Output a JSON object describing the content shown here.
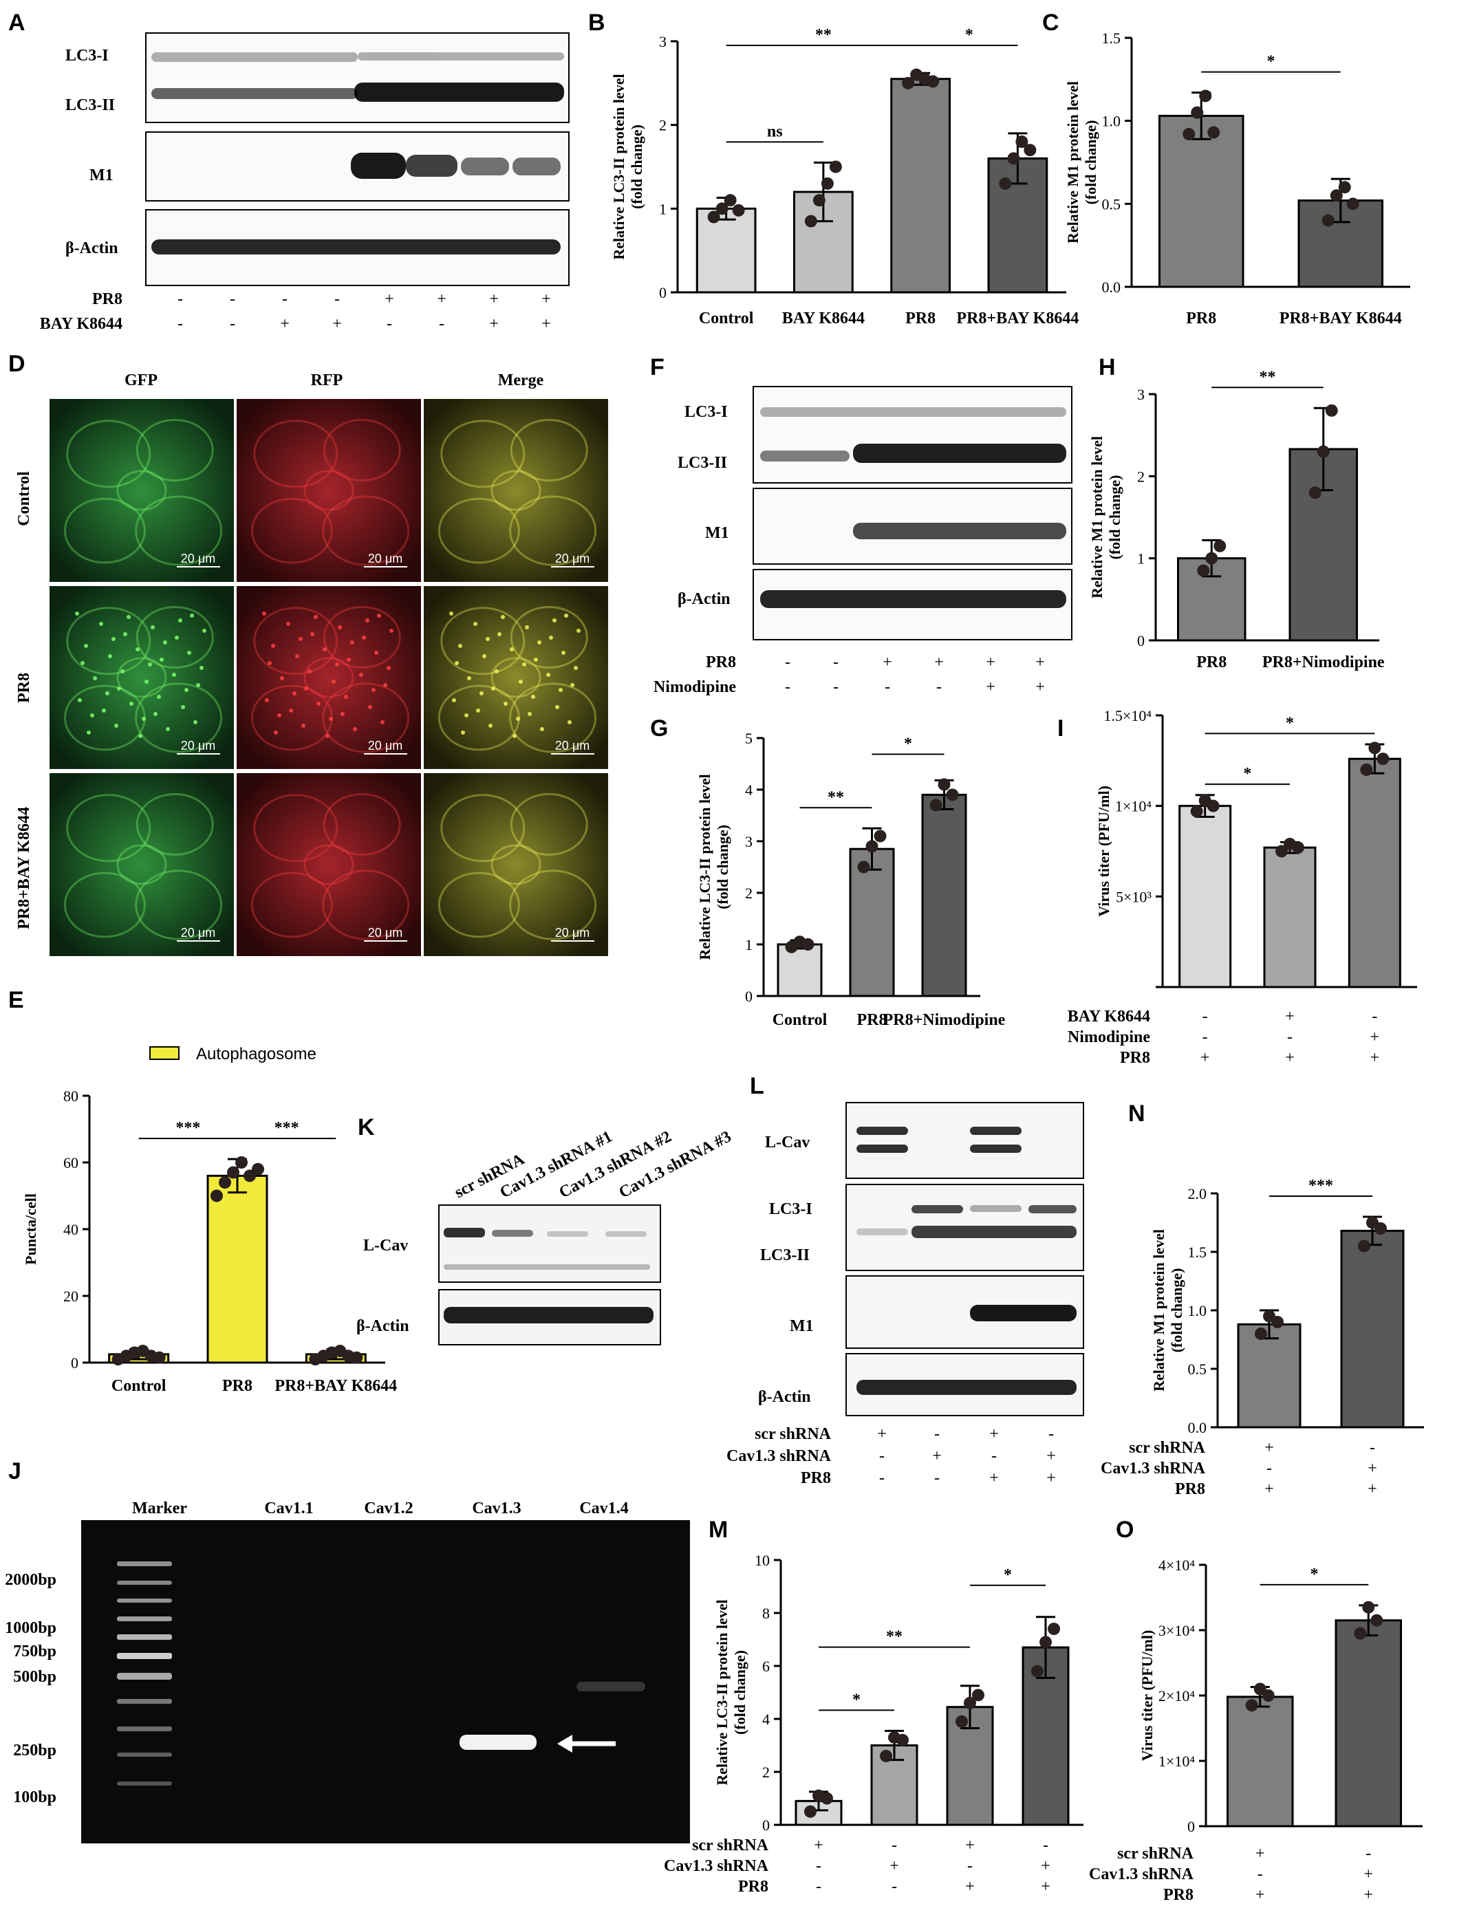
{
  "panel_letters": [
    "A",
    "B",
    "C",
    "D",
    "E",
    "F",
    "G",
    "H",
    "I",
    "J",
    "K",
    "L",
    "M",
    "N",
    "O"
  ],
  "blot_A": {
    "bands": [
      "LC3-I",
      "LC3-II",
      "M1",
      "β-Actin"
    ],
    "rows": [
      {
        "label": "PR8",
        "signs": [
          "-",
          "-",
          "-",
          "-",
          "+",
          "+",
          "+",
          "+"
        ]
      },
      {
        "label": "BAY K8644",
        "signs": [
          "-",
          "-",
          "+",
          "+",
          "-",
          "-",
          "+",
          "+"
        ]
      }
    ]
  },
  "blot_F": {
    "bands": [
      "LC3-I",
      "LC3-II",
      "M1",
      "β-Actin"
    ],
    "rows": [
      {
        "label": "PR8",
        "signs": [
          "-",
          "-",
          "+",
          "+",
          "+",
          "+"
        ]
      },
      {
        "label": "Nimodipine",
        "signs": [
          "-",
          "-",
          "-",
          "-",
          "+",
          "+"
        ]
      }
    ]
  },
  "blot_K": {
    "lanes": [
      "scr shRNA",
      "Cav1.3 shRNA #1",
      "Cav1.3 shRNA #2",
      "Cav1.3 shRNA #3"
    ],
    "bands": [
      "L-Cav",
      "β-Actin"
    ]
  },
  "blot_L": {
    "bands": [
      "L-Cav",
      "LC3-I",
      "LC3-II",
      "M1",
      "β-Actin"
    ],
    "rows": [
      {
        "label": "scr shRNA",
        "signs": [
          "+",
          "-",
          "+",
          "-"
        ]
      },
      {
        "label": "Cav1.3 shRNA",
        "signs": [
          "-",
          "+",
          "-",
          "+"
        ]
      },
      {
        "label": "PR8",
        "signs": [
          "-",
          "-",
          "+",
          "+"
        ]
      }
    ]
  },
  "microscopy_D": {
    "columns": [
      "GFP",
      "RFP",
      "Merge"
    ],
    "rows": [
      "Control",
      "PR8",
      "PR8+BAY K8644"
    ],
    "scalebar": "20 μm"
  },
  "gel_J": {
    "lanes": [
      "Marker",
      "Cav1.1",
      "Cav1.2",
      "Cav1.3",
      "Cav1.4"
    ],
    "ladder": [
      "2000bp",
      "1000bp",
      "750bp",
      "500bp",
      "250bp",
      "100bp"
    ]
  },
  "chart_data": [
    {
      "id": "B",
      "type": "bar",
      "ylabel": "Relative LC3-II protein level",
      "ylabel2": "(fold change)",
      "categories": [
        "Control",
        "BAY K8644",
        "PR8",
        "PR8+BAY K8644"
      ],
      "values": [
        1.0,
        1.2,
        2.55,
        1.6
      ],
      "err": [
        0.13,
        0.35,
        0.07,
        0.3
      ],
      "points": [
        [
          0.9,
          1.0,
          1.1,
          0.98
        ],
        [
          0.85,
          1.1,
          1.3,
          1.5
        ],
        [
          2.5,
          2.6,
          2.55,
          2.52
        ],
        [
          1.3,
          1.6,
          1.8,
          1.7
        ]
      ],
      "ylim": [
        0,
        3
      ],
      "yticks": [
        "0",
        "1",
        "2",
        "3"
      ],
      "colors": [
        "#d9d9d9",
        "#bfbfbf",
        "#7f7f7f",
        "#595959"
      ],
      "sig": [
        {
          "a": 0,
          "b": 1,
          "t": "ns",
          "lvl": 1
        },
        {
          "a": 0,
          "b": 2,
          "t": "**",
          "lvl": 2
        },
        {
          "a": 2,
          "b": 3,
          "t": "*",
          "lvl": 3
        }
      ]
    },
    {
      "id": "C",
      "type": "bar",
      "ylabel": "Relative M1 protein level",
      "ylabel2": "(fold change)",
      "categories": [
        "PR8",
        "PR8+BAY K8644"
      ],
      "values": [
        1.03,
        0.52
      ],
      "err": [
        0.14,
        0.13
      ],
      "points": [
        [
          0.92,
          1.05,
          1.15,
          0.93
        ],
        [
          0.4,
          0.55,
          0.6,
          0.5
        ]
      ],
      "ylim": [
        0,
        1.5
      ],
      "yticks": [
        "0.0",
        "0.5",
        "1.0",
        "1.5"
      ],
      "colors": [
        "#7f7f7f",
        "#595959"
      ],
      "sig": [
        {
          "a": 0,
          "b": 1,
          "t": "*",
          "lvl": 1
        }
      ]
    },
    {
      "id": "E",
      "type": "bar",
      "ylabel": "Puncta/cell",
      "ylabel2": "",
      "legend": "Autophagosome",
      "categories": [
        "Control",
        "PR8",
        "PR8+BAY K8644"
      ],
      "values": [
        2.5,
        56,
        2.5
      ],
      "err": [
        1.5,
        5,
        1.5
      ],
      "points": [
        [
          1,
          2,
          3,
          3.5,
          2,
          1.5
        ],
        [
          50,
          54,
          57,
          60,
          56,
          58
        ],
        [
          1,
          2,
          3,
          3.5,
          2,
          1.5
        ]
      ],
      "ylim": [
        0,
        80
      ],
      "yticks": [
        "0",
        "20",
        "40",
        "60",
        "80"
      ],
      "colors": [
        "#f2ea3a",
        "#f2ea3a",
        "#f2ea3a"
      ],
      "sig": [
        {
          "a": 0,
          "b": 1,
          "t": "***",
          "lvl": 1
        },
        {
          "a": 1,
          "b": 2,
          "t": "***",
          "lvl": 1
        }
      ]
    },
    {
      "id": "G",
      "type": "bar",
      "ylabel": "Relative LC3-II protein level",
      "ylabel2": "(fold change)",
      "categories": [
        "Control",
        "PR8",
        "PR8+Nimodipine"
      ],
      "values": [
        1.0,
        2.85,
        3.9
      ],
      "err": [
        0.08,
        0.4,
        0.28
      ],
      "points": [
        [
          0.95,
          1.05,
          1.0
        ],
        [
          2.5,
          2.9,
          3.1
        ],
        [
          3.7,
          4.1,
          3.9
        ]
      ],
      "ylim": [
        0,
        5
      ],
      "yticks": [
        "0",
        "1",
        "2",
        "3",
        "4",
        "5"
      ],
      "colors": [
        "#d9d9d9",
        "#7f7f7f",
        "#595959"
      ],
      "sig": [
        {
          "a": 0,
          "b": 1,
          "t": "**",
          "lvl": 1
        },
        {
          "a": 1,
          "b": 2,
          "t": "*",
          "lvl": 2
        }
      ]
    },
    {
      "id": "H",
      "type": "bar",
      "ylabel": "Relative M1 protein level",
      "ylabel2": "(fold change)",
      "categories": [
        "PR8",
        "PR8+Nimodipine"
      ],
      "values": [
        1.0,
        2.33
      ],
      "err": [
        0.22,
        0.5
      ],
      "points": [
        [
          0.85,
          1.0,
          1.15
        ],
        [
          1.8,
          2.3,
          2.8
        ]
      ],
      "ylim": [
        0,
        3
      ],
      "yticks": [
        "0",
        "1",
        "2",
        "3"
      ],
      "colors": [
        "#7f7f7f",
        "#595959"
      ],
      "sig": [
        {
          "a": 0,
          "b": 1,
          "t": "**",
          "lvl": 1
        }
      ]
    },
    {
      "id": "I",
      "type": "bar",
      "ylabel": "Virus titer (PFU/ml)",
      "ylabel2": "",
      "categories": [
        "",
        "",
        ""
      ],
      "values": [
        10000,
        7700,
        12600
      ],
      "err": [
        600,
        300,
        800
      ],
      "points": [
        [
          9700,
          10300,
          10000
        ],
        [
          7500,
          7900,
          7700
        ],
        [
          12000,
          13200,
          12600
        ]
      ],
      "ylim": [
        0,
        15000
      ],
      "yticks": [
        "",
        "5×10³",
        "1×10⁴",
        "1.5×10⁴"
      ],
      "colors": [
        "#d9d9d9",
        "#a6a6a6",
        "#7f7f7f"
      ],
      "cond": [
        {
          "label": "BAY K8644",
          "signs": [
            "-",
            "+",
            "-"
          ]
        },
        {
          "label": "Nimodipine",
          "signs": [
            "-",
            "-",
            "+"
          ]
        },
        {
          "label": "PR8",
          "signs": [
            "+",
            "+",
            "+"
          ]
        }
      ],
      "sig": [
        {
          "a": 0,
          "b": 1,
          "t": "*",
          "lvl": 1
        },
        {
          "a": 0,
          "b": 2,
          "t": "*",
          "lvl": 2
        }
      ]
    },
    {
      "id": "M",
      "type": "bar",
      "ylabel": "Relative LC3-II protein level",
      "ylabel2": "(fold change)",
      "categories": [
        "",
        "",
        "",
        ""
      ],
      "values": [
        0.9,
        3.0,
        4.45,
        6.7
      ],
      "err": [
        0.35,
        0.55,
        0.8,
        1.15
      ],
      "points": [
        [
          0.5,
          1.1,
          1.0
        ],
        [
          2.6,
          3.3,
          3.2
        ],
        [
          3.9,
          4.6,
          4.9
        ],
        [
          5.8,
          6.9,
          7.4
        ]
      ],
      "ylim": [
        0,
        10
      ],
      "yticks": [
        "0",
        "2",
        "4",
        "6",
        "8",
        "10"
      ],
      "colors": [
        "#d9d9d9",
        "#a6a6a6",
        "#7f7f7f",
        "#595959"
      ],
      "cond": [
        {
          "label": "scr shRNA",
          "signs": [
            "+",
            "-",
            "+",
            "-"
          ]
        },
        {
          "label": "Cav1.3 shRNA",
          "signs": [
            "-",
            "+",
            "-",
            "+"
          ]
        },
        {
          "label": "PR8",
          "signs": [
            "-",
            "-",
            "+",
            "+"
          ]
        }
      ],
      "sig": [
        {
          "a": 0,
          "b": 1,
          "t": "*",
          "lvl": 1
        },
        {
          "a": 0,
          "b": 2,
          "t": "**",
          "lvl": 2
        },
        {
          "a": 2,
          "b": 3,
          "t": "*",
          "lvl": 3
        }
      ]
    },
    {
      "id": "N",
      "type": "bar",
      "ylabel": "Relative M1 protein level",
      "ylabel2": "(fold change)",
      "categories": [
        "",
        ""
      ],
      "values": [
        0.88,
        1.68
      ],
      "err": [
        0.12,
        0.12
      ],
      "points": [
        [
          0.8,
          0.95,
          0.9
        ],
        [
          1.55,
          1.75,
          1.7
        ]
      ],
      "ylim": [
        0,
        2.0
      ],
      "yticks": [
        "0.0",
        "0.5",
        "1.0",
        "1.5",
        "2.0"
      ],
      "colors": [
        "#7f7f7f",
        "#595959"
      ],
      "cond": [
        {
          "label": "scr shRNA",
          "signs": [
            "+",
            "-"
          ]
        },
        {
          "label": "Cav1.3 shRNA",
          "signs": [
            "-",
            "+"
          ]
        },
        {
          "label": "PR8",
          "signs": [
            "+",
            "+"
          ]
        }
      ],
      "sig": [
        {
          "a": 0,
          "b": 1,
          "t": "***",
          "lvl": 1
        }
      ]
    },
    {
      "id": "O",
      "type": "bar",
      "ylabel": "Virus titer (PFU/ml)",
      "ylabel2": "",
      "categories": [
        "",
        ""
      ],
      "values": [
        19800,
        31500
      ],
      "err": [
        1500,
        2300
      ],
      "points": [
        [
          18500,
          21000,
          20000
        ],
        [
          29500,
          33500,
          31500
        ]
      ],
      "ylim": [
        0,
        40000
      ],
      "yticks": [
        "0",
        "1×10⁴",
        "2×10⁴",
        "3×10⁴",
        "4×10⁴"
      ],
      "colors": [
        "#7f7f7f",
        "#595959"
      ],
      "cond": [
        {
          "label": "scr shRNA",
          "signs": [
            "+",
            "-"
          ]
        },
        {
          "label": "Cav1.3 shRNA",
          "signs": [
            "-",
            "+"
          ]
        },
        {
          "label": "PR8",
          "signs": [
            "+",
            "+"
          ]
        }
      ],
      "sig": [
        {
          "a": 0,
          "b": 1,
          "t": "*",
          "lvl": 1
        }
      ]
    }
  ]
}
